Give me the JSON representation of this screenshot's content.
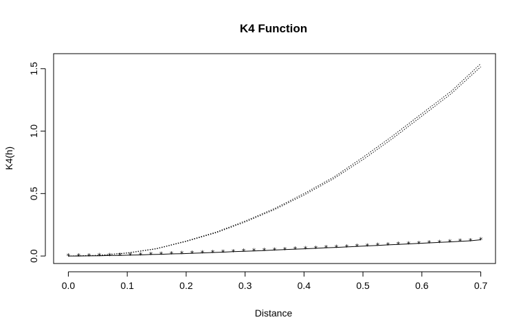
{
  "chart_data": {
    "type": "line",
    "title": "K4 Function",
    "xlabel": "Distance",
    "ylabel": "K4(h)",
    "xlim": [
      -0.025,
      0.725
    ],
    "ylim": [
      -0.06,
      1.62
    ],
    "x_ticks": [
      0.0,
      0.1,
      0.2,
      0.3,
      0.4,
      0.5,
      0.6,
      0.7
    ],
    "x_tick_labels": [
      "0.0",
      "0.1",
      "0.2",
      "0.3",
      "0.4",
      "0.5",
      "0.6",
      "0.7"
    ],
    "y_ticks": [
      0.0,
      0.5,
      1.0,
      1.5
    ],
    "y_tick_labels": [
      "0.0",
      "0.5",
      "1.0",
      "1.5"
    ],
    "grid": false,
    "legend": "none",
    "series": [
      {
        "style": "dotted",
        "x": [
          0.0,
          0.05,
          0.1,
          0.15,
          0.2,
          0.25,
          0.3,
          0.35,
          0.4,
          0.45,
          0.5,
          0.55,
          0.6,
          0.65,
          0.7
        ],
        "y": [
          0.0,
          0.005,
          0.025,
          0.06,
          0.12,
          0.19,
          0.28,
          0.38,
          0.5,
          0.63,
          0.79,
          0.96,
          1.14,
          1.32,
          1.54
        ]
      },
      {
        "style": "dotted",
        "x": [
          0.0,
          0.05,
          0.1,
          0.15,
          0.2,
          0.25,
          0.3,
          0.35,
          0.4,
          0.45,
          0.5,
          0.55,
          0.6,
          0.65,
          0.7
        ],
        "y": [
          0.0,
          0.005,
          0.023,
          0.058,
          0.117,
          0.185,
          0.272,
          0.372,
          0.488,
          0.618,
          0.772,
          0.94,
          1.12,
          1.3,
          1.515
        ]
      },
      {
        "style": "solid-with-star-markers",
        "x": [
          0.0,
          0.0175,
          0.035,
          0.0525,
          0.07,
          0.0875,
          0.105,
          0.1225,
          0.14,
          0.1575,
          0.175,
          0.1925,
          0.21,
          0.2275,
          0.245,
          0.2625,
          0.28,
          0.2975,
          0.315,
          0.3325,
          0.35,
          0.3675,
          0.385,
          0.4025,
          0.42,
          0.4375,
          0.455,
          0.4725,
          0.49,
          0.5075,
          0.525,
          0.5425,
          0.56,
          0.5775,
          0.595,
          0.6125,
          0.63,
          0.6475,
          0.665,
          0.6825,
          0.7
        ],
        "y": [
          0.0,
          0.0,
          0.001,
          0.002,
          0.004,
          0.005,
          0.007,
          0.009,
          0.012,
          0.014,
          0.017,
          0.019,
          0.022,
          0.025,
          0.028,
          0.031,
          0.035,
          0.038,
          0.041,
          0.044,
          0.048,
          0.051,
          0.055,
          0.058,
          0.062,
          0.066,
          0.069,
          0.073,
          0.077,
          0.081,
          0.085,
          0.089,
          0.093,
          0.097,
          0.101,
          0.105,
          0.109,
          0.113,
          0.118,
          0.122,
          0.13
        ]
      }
    ]
  }
}
